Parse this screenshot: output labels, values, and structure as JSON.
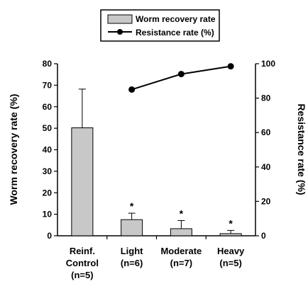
{
  "chart_data": {
    "type": "bar",
    "categories": [
      [
        "Reinf.",
        "Control",
        "(n=5)"
      ],
      [
        "Light",
        "(n=6)"
      ],
      [
        "Moderate",
        "(n=7)"
      ],
      [
        "Heavy",
        "(n=5)"
      ]
    ],
    "series": [
      {
        "name": "Worm recovery rate",
        "type": "bar",
        "axis": "left",
        "values": [
          50.2,
          7.5,
          3.3,
          1.0
        ],
        "errors": [
          18.0,
          3.0,
          3.8,
          1.5
        ],
        "color": "#c8c8c8"
      },
      {
        "name": "Resistance rate (%)",
        "type": "line",
        "axis": "right",
        "values": [
          null,
          85,
          94,
          98.5
        ],
        "color": "#000000"
      }
    ],
    "significance": [
      "",
      "*",
      "*",
      "*"
    ],
    "ylabel": "Worm recovery rate (%)",
    "ylabel_right": "Resistance rate (%)",
    "ylim": [
      0,
      80
    ],
    "ylim_right": [
      0,
      100
    ],
    "yticks": [
      "0",
      "10",
      "20",
      "30",
      "40",
      "50",
      "60",
      "70",
      "80"
    ],
    "yticks_right": [
      "0",
      "20",
      "40",
      "60",
      "80",
      "100"
    ],
    "legend_placement": "top-center",
    "grid": false
  }
}
